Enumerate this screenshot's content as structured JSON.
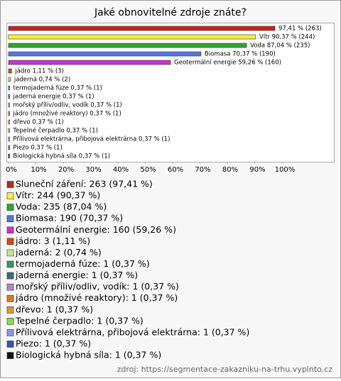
{
  "chart_data": {
    "type": "hbar",
    "title": "Jaké obnovitelné zdroje znáte?",
    "categories": [
      "Sluneční záření",
      "Vítr",
      "Voda",
      "Biomasa",
      "Geotermální energie",
      "jádro",
      "jaderná",
      "termojaderná fúze",
      "jaderná energie",
      "mořský příliv/odliv, vodík",
      "jádro (množivé reaktory)",
      "dřevo",
      "Tepelné čerpadlo",
      "Přílivová elektrárna, přibojová elektrárna",
      "Piezo",
      "Biologická hybná síla"
    ],
    "values": [
      97.41,
      90.37,
      87.04,
      70.37,
      59.26,
      1.11,
      0.74,
      0.37,
      0.37,
      0.37,
      0.37,
      0.37,
      0.37,
      0.37,
      0.37,
      0.37
    ],
    "value_labels": [
      "97,41 % (263)",
      "Vítr 90,37 % (244)",
      "Voda 87,04 % (235)",
      "Biomasa 70,37 % (190)",
      "Geotermální energie 59,26 % (160)",
      "jádro 1,11 % (3)",
      "jaderná 0,74 % (2)",
      "termojaderná fúze 0,37 % (1)",
      "jaderná energie 0,37 % (1)",
      "mořský příliv/odliv, vodík 0,37 % (1)",
      "jádro (množivé reaktory) 0,37 % (1)",
      "dřevo 0,37 % (1)",
      "Tepelné čerpadlo 0,37 % (1)",
      "Přílivová elektrárna, přibojová elektrárna 0,37 % (1)",
      "Piezo 0,37 % (1)",
      "Biologická hybná síla 0,37 % (1)"
    ],
    "colors": [
      "#c0281c",
      "#f5f03a",
      "#2fa52f",
      "#5577dd",
      "#cc33cc",
      "#dd4411",
      "#c8e888",
      "#339966",
      "#2f6f80",
      "#aa88cc",
      "#dd7722",
      "#dd9a2a",
      "#88dd44",
      "#8899dd",
      "#3355bb",
      "#111111"
    ],
    "legend": [
      "Sluneční záření: 263 (97,41 %)",
      "Vítr: 244 (90,37 %)",
      "Voda: 235 (87,04 %)",
      "Biomasa: 190 (70,37 %)",
      "Geotermální energie: 160 (59,26 %)",
      "jádro: 3 (1,11 %)",
      "jaderná: 2 (0,74 %)",
      "termojaderná fúze: 1 (0,37 %)",
      "jaderná energie: 1 (0,37 %)",
      "mořský příliv/odliv, vodík: 1 (0,37 %)",
      "jádro (množivé reaktory): 1 (0,37 %)",
      "dřevo: 1 (0,37 %)",
      "Tepelné čerpadlo: 1 (0,37 %)",
      "Přílivová elektrárna, přibojová elektrárna: 1 (0,37 %)",
      "Piezo: 1 (0,37 %)",
      "Biologická hybná síla: 1 (0,37 %)"
    ],
    "xlim": [
      0,
      100
    ],
    "xticks": [
      {
        "value": 0,
        "label": "0%"
      },
      {
        "value": 10,
        "label": "10%"
      },
      {
        "value": 20,
        "label": "20%"
      },
      {
        "value": 30,
        "label": "30%"
      },
      {
        "value": 40,
        "label": "40%"
      },
      {
        "value": 50,
        "label": "50%"
      },
      {
        "value": 60,
        "label": "60%"
      },
      {
        "value": 70,
        "label": "70%"
      },
      {
        "value": 80,
        "label": "80%"
      },
      {
        "value": 90,
        "label": "90%"
      },
      {
        "value": 100,
        "label": "100%"
      }
    ],
    "source": "zdroj: https://segmentace-zakazniku-na-trhu.vyplnto.cz"
  }
}
